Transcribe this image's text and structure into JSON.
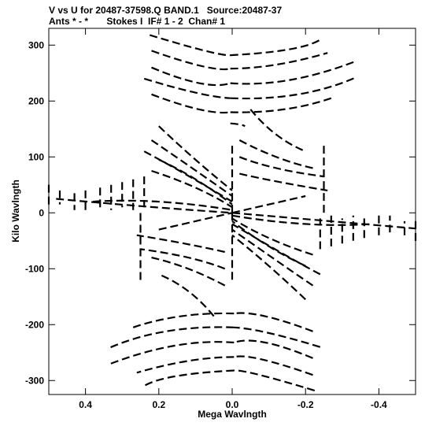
{
  "chart_data": {
    "type": "scatter",
    "title_line1": "V vs U for 20487-37598.Q BAND.1   Source:20487-37",
    "title_line2": "Ants * - *       Stokes I  IF# 1 - 2  Chan# 1",
    "xlabel": "Mega Wavlngth",
    "ylabel": "Kilo Wavlngth",
    "x_reversed": true,
    "xlim": [
      0.5,
      -0.5
    ],
    "ylim": [
      -325,
      330
    ],
    "x_ticks": [
      {
        "value": 0.4,
        "label": "0.4"
      },
      {
        "value": 0.2,
        "label": "0.2"
      },
      {
        "value": 0.0,
        "label": "0.0"
      },
      {
        "value": -0.2,
        "label": "-0.2"
      },
      {
        "value": -0.4,
        "label": "-0.4"
      }
    ],
    "y_ticks": [
      {
        "value": 300,
        "label": "300"
      },
      {
        "value": 200,
        "label": "200"
      },
      {
        "value": 100,
        "label": "100"
      },
      {
        "value": 0,
        "label": "0"
      },
      {
        "value": -100,
        "label": "-100"
      },
      {
        "value": -200,
        "label": "-200"
      },
      {
        "value": -300,
        "label": "-300"
      }
    ],
    "grid": false,
    "marker_color": "#000000",
    "tracks": [
      {
        "u0": 0.225,
        "v0": 318,
        "u1": 0.075,
        "v1": 290,
        "u2": 0.005,
        "v2": 282
      },
      {
        "u0": 0.005,
        "v0": 282,
        "u1": -0.16,
        "v1": 293,
        "u2": -0.245,
        "v2": 312
      },
      {
        "u0": 0.22,
        "v0": 290,
        "u1": 0.08,
        "v1": 262,
        "u2": 0.005,
        "v2": 258
      },
      {
        "u0": 0.005,
        "v0": 258,
        "u1": -0.12,
        "v1": 265,
        "u2": -0.26,
        "v2": 286
      },
      {
        "u0": 0.22,
        "v0": 260,
        "u1": 0.09,
        "v1": 232,
        "u2": 0.005,
        "v2": 232
      },
      {
        "u0": 0.005,
        "v0": 232,
        "u1": -0.16,
        "v1": 238,
        "u2": -0.34,
        "v2": 272
      },
      {
        "u0": 0.24,
        "v0": 240,
        "u1": 0.1,
        "v1": 215,
        "u2": 0.005,
        "v2": 205
      },
      {
        "u0": 0.005,
        "v0": 205,
        "u1": -0.18,
        "v1": 212,
        "u2": -0.34,
        "v2": 243
      },
      {
        "u0": 0.22,
        "v0": 212,
        "u1": 0.09,
        "v1": 185,
        "u2": 0.005,
        "v2": 180
      },
      {
        "u0": 0.005,
        "v0": 180,
        "u1": -0.14,
        "v1": 185,
        "u2": -0.27,
        "v2": 205
      },
      {
        "u0": 0.005,
        "v0": 160,
        "u1": -0.02,
        "v1": 158,
        "u2": -0.035,
        "v2": 155
      },
      {
        "u0": -0.225,
        "v0": -318,
        "u1": -0.075,
        "v1": -290,
        "u2": -0.005,
        "v2": -282
      },
      {
        "u0": -0.005,
        "v0": -282,
        "u1": 0.16,
        "v1": -293,
        "u2": 0.245,
        "v2": -312
      },
      {
        "u0": -0.22,
        "v0": -290,
        "u1": -0.08,
        "v1": -262,
        "u2": -0.005,
        "v2": -258
      },
      {
        "u0": -0.005,
        "v0": -258,
        "u1": 0.12,
        "v1": -265,
        "u2": 0.26,
        "v2": -286
      },
      {
        "u0": -0.22,
        "v0": -260,
        "u1": -0.09,
        "v1": -232,
        "u2": -0.005,
        "v2": -232
      },
      {
        "u0": -0.005,
        "v0": -232,
        "u1": 0.16,
        "v1": -238,
        "u2": 0.34,
        "v2": -272
      },
      {
        "u0": -0.24,
        "v0": -240,
        "u1": -0.1,
        "v1": -215,
        "u2": -0.005,
        "v2": -205
      },
      {
        "u0": -0.005,
        "v0": -205,
        "u1": 0.18,
        "v1": -212,
        "u2": 0.34,
        "v2": -243
      },
      {
        "u0": -0.22,
        "v0": -212,
        "u1": -0.09,
        "v1": -185,
        "u2": -0.005,
        "v2": -180
      },
      {
        "u0": -0.005,
        "v0": -180,
        "u1": 0.14,
        "v1": -185,
        "u2": 0.27,
        "v2": -205
      },
      {
        "u0": 0.2,
        "v0": 155,
        "u1": 0.1,
        "v1": 95,
        "u2": 0.0,
        "v2": 40
      },
      {
        "u0": 0.22,
        "v0": 130,
        "u1": 0.12,
        "v1": 85,
        "u2": 0.0,
        "v2": 30
      },
      {
        "u0": 0.24,
        "v0": 110,
        "u1": 0.13,
        "v1": 70,
        "u2": 0.0,
        "v2": 20
      },
      {
        "u0": 0.2,
        "v0": 95,
        "u1": 0.1,
        "v1": 60,
        "u2": 0.0,
        "v2": 15
      },
      {
        "u0": 0.22,
        "v0": 75,
        "u1": 0.1,
        "v1": 45,
        "u2": 0.0,
        "v2": 10
      },
      {
        "u0": -0.05,
        "v0": 185,
        "u1": -0.12,
        "v1": 140,
        "u2": -0.2,
        "v2": 110
      },
      {
        "u0": -0.02,
        "v0": 130,
        "u1": -0.12,
        "v1": 100,
        "u2": -0.22,
        "v2": 80
      },
      {
        "u0": -0.02,
        "v0": 100,
        "u1": -0.12,
        "v1": 80,
        "u2": -0.25,
        "v2": 65
      },
      {
        "u0": -0.02,
        "v0": 70,
        "u1": -0.13,
        "v1": 55,
        "u2": -0.26,
        "v2": 40
      },
      {
        "u0": -0.2,
        "v0": -155,
        "u1": -0.1,
        "v1": -95,
        "u2": 0.0,
        "v2": -40
      },
      {
        "u0": -0.22,
        "v0": -130,
        "u1": -0.12,
        "v1": -85,
        "u2": 0.0,
        "v2": -30
      },
      {
        "u0": -0.24,
        "v0": -110,
        "u1": -0.13,
        "v1": -70,
        "u2": 0.0,
        "v2": -20
      },
      {
        "u0": -0.2,
        "v0": -95,
        "u1": -0.1,
        "v1": -60,
        "u2": 0.0,
        "v2": -15
      },
      {
        "u0": -0.22,
        "v0": -75,
        "u1": -0.1,
        "v1": -45,
        "u2": 0.0,
        "v2": -10
      },
      {
        "u0": 0.05,
        "v0": -185,
        "u1": 0.12,
        "v1": -140,
        "u2": 0.2,
        "v2": -110
      },
      {
        "u0": 0.02,
        "v0": -130,
        "u1": 0.12,
        "v1": -100,
        "u2": 0.22,
        "v2": -80
      },
      {
        "u0": 0.02,
        "v0": -100,
        "u1": 0.12,
        "v1": -80,
        "u2": 0.25,
        "v2": -65
      },
      {
        "u0": 0.02,
        "v0": -70,
        "u1": 0.13,
        "v1": -55,
        "u2": 0.26,
        "v2": -40
      },
      {
        "u0": 0.48,
        "v0": 25,
        "u1": 0.25,
        "v1": 12,
        "u2": 0.0,
        "v2": 0
      },
      {
        "u0": 0.0,
        "v0": 0,
        "u1": -0.25,
        "v1": -14,
        "u2": -0.5,
        "v2": -28
      },
      {
        "u0": 0.38,
        "v0": 20,
        "u1": 0.2,
        "v1": 20,
        "u2": 0.0,
        "v2": 5
      },
      {
        "u0": 0.0,
        "v0": -5,
        "u1": -0.2,
        "v1": -20,
        "u2": -0.38,
        "v2": -20
      },
      {
        "u0": 0.2,
        "v0": -30,
        "u1": 0.1,
        "v1": -15,
        "u2": 0.0,
        "v2": 0
      },
      {
        "u0": 0.0,
        "v0": 0,
        "u1": -0.1,
        "v1": 15,
        "u2": -0.2,
        "v2": 30
      },
      {
        "u0": 0.47,
        "v0": 40,
        "u1": 0.47,
        "v1": 30,
        "u2": 0.47,
        "v2": 15
      },
      {
        "u0": 0.43,
        "v0": 35,
        "u1": 0.43,
        "v1": 25,
        "u2": 0.43,
        "v2": 5
      },
      {
        "u0": 0.4,
        "v0": 40,
        "u1": 0.4,
        "v1": 25,
        "u2": 0.4,
        "v2": 5
      },
      {
        "u0": 0.36,
        "v0": 45,
        "u1": 0.36,
        "v1": 30,
        "u2": 0.36,
        "v2": 10
      },
      {
        "u0": 0.33,
        "v0": 50,
        "u1": 0.33,
        "v1": 30,
        "u2": 0.33,
        "v2": 5
      },
      {
        "u0": 0.3,
        "v0": 55,
        "u1": 0.3,
        "v1": 35,
        "u2": 0.3,
        "v2": 10
      },
      {
        "u0": 0.27,
        "v0": 60,
        "u1": 0.27,
        "v1": 35,
        "u2": 0.27,
        "v2": 5
      },
      {
        "u0": 0.24,
        "v0": 65,
        "u1": 0.24,
        "v1": 40,
        "u2": 0.24,
        "v2": 10
      },
      {
        "u0": -0.47,
        "v0": -40,
        "u1": -0.47,
        "v1": -30,
        "u2": -0.47,
        "v2": -15
      },
      {
        "u0": -0.43,
        "v0": -35,
        "u1": -0.43,
        "v1": -25,
        "u2": -0.43,
        "v2": -5
      },
      {
        "u0": -0.4,
        "v0": -40,
        "u1": -0.4,
        "v1": -25,
        "u2": -0.4,
        "v2": -5
      },
      {
        "u0": -0.36,
        "v0": -45,
        "u1": -0.36,
        "v1": -30,
        "u2": -0.36,
        "v2": -10
      },
      {
        "u0": -0.33,
        "v0": -50,
        "u1": -0.33,
        "v1": -30,
        "u2": -0.33,
        "v2": -5
      },
      {
        "u0": -0.3,
        "v0": -55,
        "u1": -0.3,
        "v1": -35,
        "u2": -0.3,
        "v2": -10
      },
      {
        "u0": -0.27,
        "v0": -60,
        "u1": -0.27,
        "v1": -35,
        "u2": -0.27,
        "v2": -5
      },
      {
        "u0": -0.24,
        "v0": -65,
        "u1": -0.24,
        "v1": -40,
        "u2": -0.24,
        "v2": -10
      },
      {
        "u0": -0.5,
        "v0": -15,
        "u1": -0.5,
        "v1": -35,
        "u2": -0.5,
        "v2": -55
      },
      {
        "u0": 0.5,
        "v0": 15,
        "u1": 0.5,
        "v1": 35,
        "u2": 0.5,
        "v2": 55
      },
      {
        "u0": -0.25,
        "v0": 120,
        "u1": -0.25,
        "v1": 60,
        "u2": -0.25,
        "v2": 0
      },
      {
        "u0": 0.25,
        "v0": -120,
        "u1": 0.25,
        "v1": -60,
        "u2": 0.25,
        "v2": 0
      },
      {
        "u0": 0.0,
        "v0": 120,
        "u1": 0.0,
        "v1": 60,
        "u2": 0.0,
        "v2": 0
      },
      {
        "u0": 0.0,
        "v0": 0,
        "u1": 0.0,
        "v1": -60,
        "u2": 0.0,
        "v2": -120
      }
    ]
  }
}
